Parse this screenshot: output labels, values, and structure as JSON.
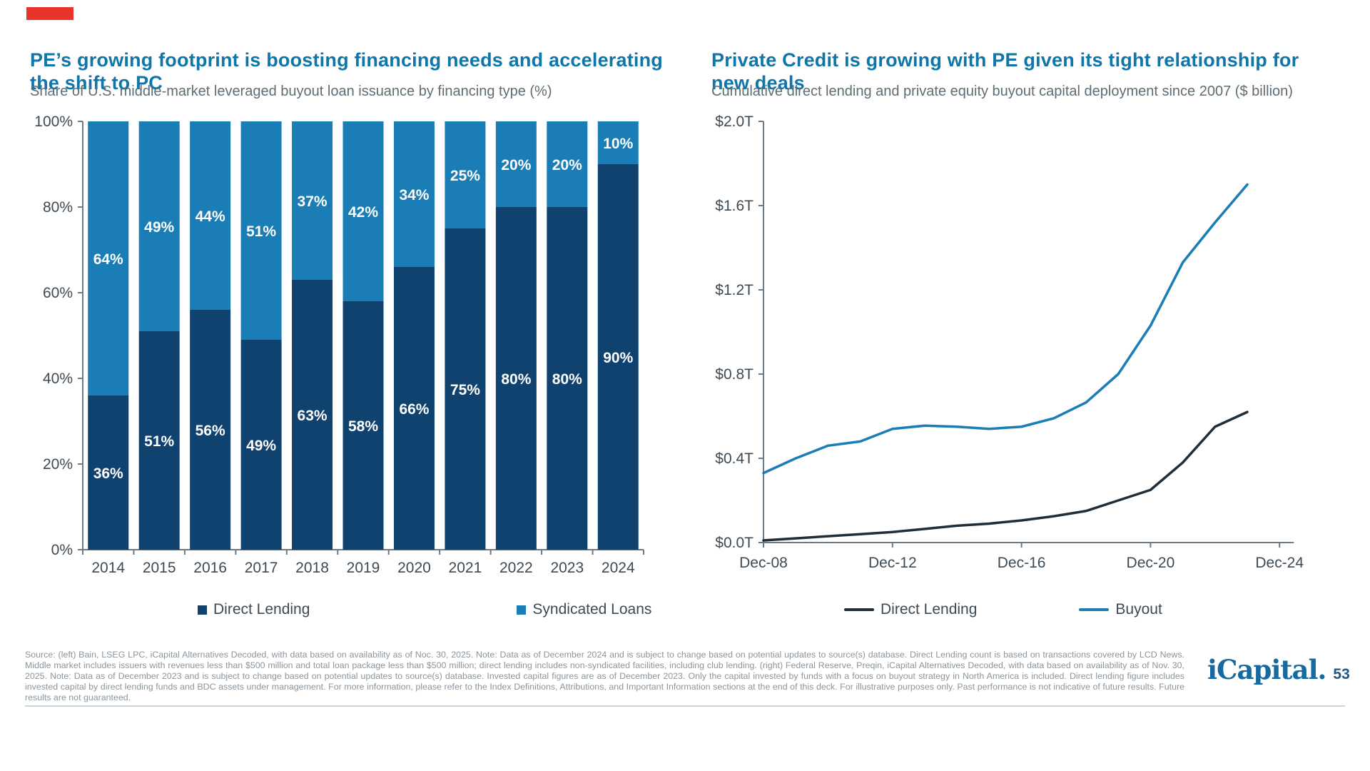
{
  "accent": {
    "bar_color": "#e8342a"
  },
  "colors": {
    "title_blue": "#0e76a9",
    "subtitle_gray": "#5e6d75",
    "axis_text": "#3d4a54",
    "axis_line": "#6e7a83",
    "bar_navy": "#104270",
    "bar_blue": "#1a7db5",
    "line_dark": "#202e3a",
    "line_blue": "#1a7db5",
    "footer_gray": "#8b959c",
    "logo_blue": "#156a9f",
    "page_number_navy": "#25567f"
  },
  "left_panel": {
    "title": "PE’s growing footprint is boosting financing needs and accelerating the shift to PC",
    "subtitle": "Share of U.S. middle-market leveraged buyout loan issuance by financing type (%)",
    "legend": [
      {
        "label": "Direct Lending",
        "color": "#104270"
      },
      {
        "label": "Syndicated Loans",
        "color": "#1a7db5"
      }
    ]
  },
  "right_panel": {
    "title": "Private Credit is growing with PE given its tight relationship for new deals",
    "subtitle": "Cumulative direct lending and private equity buyout capital deployment since 2007 ($ billion)",
    "legend": [
      {
        "label": "Direct Lending",
        "color": "#202e3a"
      },
      {
        "label": "Buyout",
        "color": "#1a7db5"
      }
    ]
  },
  "chart_data": [
    {
      "type": "bar",
      "stacked": true,
      "title": "Share of U.S. middle-market leveraged buyout loan issuance by financing type (%)",
      "categories": [
        "2014",
        "2015",
        "2016",
        "2017",
        "2018",
        "2019",
        "2020",
        "2021",
        "2022",
        "2023",
        "2024"
      ],
      "series": [
        {
          "name": "Direct Lending",
          "color": "#104270",
          "values": [
            36,
            51,
            56,
            49,
            63,
            58,
            66,
            75,
            80,
            80,
            90
          ]
        },
        {
          "name": "Syndicated Loans",
          "color": "#1a7db5",
          "values": [
            64,
            49,
            44,
            51,
            37,
            42,
            34,
            25,
            20,
            20,
            10
          ]
        }
      ],
      "value_suffix": "%",
      "ylim": [
        0,
        100
      ],
      "y_tick_labels": [
        "0%",
        "20%",
        "40%",
        "60%",
        "80%",
        "100%"
      ],
      "grid": false,
      "legend_position": "bottom"
    },
    {
      "type": "line",
      "title": "Cumulative direct lending and private equity buyout capital deployment since 2007 ($ billion)",
      "x_unit": "years since Dec-2008",
      "xlim": [
        0,
        16.4
      ],
      "ylim": [
        0,
        2.0
      ],
      "x_tick_positions": [
        0,
        4,
        8,
        12,
        16
      ],
      "x_tick_labels": [
        "Dec-08",
        "Dec-12",
        "Dec-16",
        "Dec-20",
        "Dec-24"
      ],
      "y_tick_values": [
        0,
        0.4,
        0.8,
        1.2,
        1.6,
        2.0
      ],
      "y_tick_labels": [
        "$0.0T",
        "$0.4T",
        "$0.8T",
        "$1.2T",
        "$1.6T",
        "$2.0T"
      ],
      "grid": false,
      "legend_position": "bottom",
      "series": [
        {
          "name": "Direct Lending",
          "color": "#202e3a",
          "x": [
            0,
            1,
            2,
            3,
            4,
            5,
            6,
            7,
            8,
            9,
            10,
            11,
            12,
            13,
            14,
            15
          ],
          "values": [
            0.01,
            0.02,
            0.03,
            0.04,
            0.05,
            0.065,
            0.08,
            0.09,
            0.105,
            0.125,
            0.15,
            0.2,
            0.25,
            0.38,
            0.55,
            0.62
          ]
        },
        {
          "name": "Buyout",
          "color": "#1a7db5",
          "x": [
            0,
            1,
            2,
            3,
            4,
            5,
            6,
            7,
            8,
            9,
            10,
            11,
            12,
            13,
            14,
            15
          ],
          "values": [
            0.33,
            0.4,
            0.46,
            0.48,
            0.54,
            0.555,
            0.55,
            0.54,
            0.55,
            0.59,
            0.665,
            0.8,
            1.03,
            1.33,
            1.52,
            1.7
          ]
        }
      ]
    }
  ],
  "footer": {
    "text": "Source: (left) Bain, LSEG LPC, iCapital Alternatives Decoded, with data based on availability as of Noc. 30, 2025. Note: Data as of December 2024 and is subject to change based on potential updates to source(s) database. Direct Lending count is based on transactions covered by LCD News. Middle market includes issuers with revenues less than $500 million and total loan package less than $500 million; direct lending includes non-syndicated facilities, including club lending. (right) Federal Reserve, Preqin, iCapital Alternatives Decoded, with data based on availability as of Nov. 30, 2025. Note: Data as of December 2023 and is subject to change based on potential updates to source(s) database. Invested capital figures are as of December 2023. Only the capital invested by funds with a focus on buyout strategy in North America is included. Direct lending figure includes invested capital by direct lending funds and BDC assets under management. For more information, please refer to the Index Definitions, Attributions, and Important Information sections at the end of this deck. For illustrative purposes only. Past performance is not indicative of future results. Future results are not guaranteed."
  },
  "logo": {
    "text": "iCapital.",
    "page": "53"
  }
}
